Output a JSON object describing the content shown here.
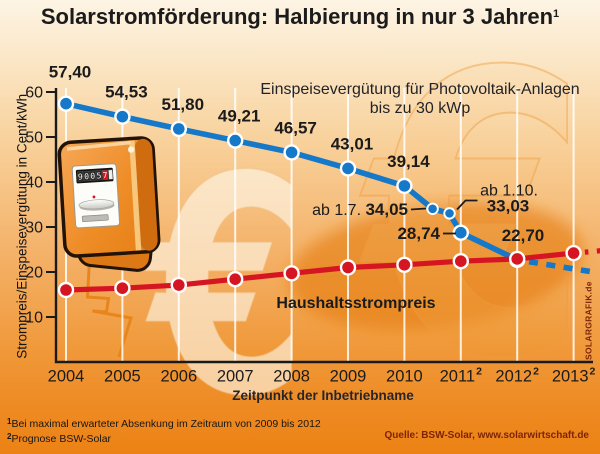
{
  "title": {
    "text": "Solarstromförderung: Halbierung in nur 3 Jahren",
    "sup": "1"
  },
  "annotations": {
    "blue_series_line1": "Einspeisevergütung für Photovoltaik-Anlagen",
    "blue_series_line2": "bis zu 30 kWp",
    "red_series": "Haushaltsstrompreis"
  },
  "y_axis": {
    "title": "Strompreis/Einspeisevergütung in Cent/kWh",
    "ticks": [
      "60",
      "50",
      "40",
      "30",
      "20",
      "10"
    ]
  },
  "x_axis": {
    "title": "Zeitpunkt der Inbetriebname",
    "ticks": [
      {
        "label": "2004",
        "sup": ""
      },
      {
        "label": "2005",
        "sup": ""
      },
      {
        "label": "2006",
        "sup": ""
      },
      {
        "label": "2007",
        "sup": ""
      },
      {
        "label": "2008",
        "sup": ""
      },
      {
        "label": "2009",
        "sup": ""
      },
      {
        "label": "2010",
        "sup": ""
      },
      {
        "label": "2011",
        "sup": "2"
      },
      {
        "label": "2012",
        "sup": "2"
      },
      {
        "label": "2013",
        "sup": "2"
      }
    ]
  },
  "footnotes": [
    {
      "sup": "1",
      "text": "Bei maximal erwarteter Absenkung im Zeitraum von 2009 bis 2012"
    },
    {
      "sup": "2",
      "text": "Prognose BSW-Solar"
    }
  ],
  "source": "Quelle: BSW-Solar, www.solarwirtschaft.de",
  "watermark": "SOLARGRAFIK.de",
  "meter": {
    "display_digits": [
      "9",
      "0",
      "0",
      "5",
      "7"
    ]
  },
  "colors": {
    "blue": "#1678c8",
    "red": "#d51622",
    "text": "#1b1b1b",
    "maroon": "#7c2506",
    "grid": "#ffffff",
    "axis": "#1a1a1a"
  },
  "chart_data": {
    "type": "line",
    "title": "Solarstromförderung: Halbierung in nur 3 Jahren",
    "xlabel": "Zeitpunkt der Inbetriebname",
    "ylabel": "Strompreis/Einspeisevergütung in Cent/kWh",
    "xlim": [
      2004,
      2013
    ],
    "ylim": [
      0,
      62
    ],
    "yticks": [
      60,
      50,
      40,
      30,
      20,
      10
    ],
    "xticks": [
      2004,
      2005,
      2006,
      2007,
      2008,
      2009,
      2010,
      2011,
      2012,
      2013
    ],
    "grid": "vertical-white-lines",
    "legend_position": "inline-annotations",
    "series": [
      {
        "name": "Einspeisevergütung für Photovoltaik-Anlagen bis zu 30 kWp",
        "color": "#1678c8",
        "points": [
          {
            "x": 2004,
            "y": 57.4,
            "label": "57,40"
          },
          {
            "x": 2005,
            "y": 54.53,
            "label": "54,53"
          },
          {
            "x": 2006,
            "y": 51.8,
            "label": "51,80"
          },
          {
            "x": 2007,
            "y": 49.21,
            "label": "49,21"
          },
          {
            "x": 2008,
            "y": 46.57,
            "label": "46,57"
          },
          {
            "x": 2009,
            "y": 43.01,
            "label": "43,01"
          },
          {
            "x": 2010,
            "y": 39.14,
            "label": "39,14"
          },
          {
            "x": 2010.5,
            "y": 34.05,
            "label": "34,05",
            "note": "ab 1.7.",
            "small": true
          },
          {
            "x": 2010.8,
            "y": 33.03,
            "label": "33,03",
            "note": "ab 1.10.",
            "small": true
          },
          {
            "x": 2011,
            "y": 28.74,
            "label": "28,74"
          },
          {
            "x": 2012,
            "y": 22.7,
            "label": "22,70"
          }
        ],
        "projection_dashed": {
          "x1": 2012,
          "y1": 22.7,
          "x2": 2013.4,
          "y2": 19.9
        }
      },
      {
        "name": "Haushaltsstrompreis",
        "color": "#d51622",
        "points": [
          {
            "x": 2004,
            "y": 16.0
          },
          {
            "x": 2005,
            "y": 16.4
          },
          {
            "x": 2006,
            "y": 17.1
          },
          {
            "x": 2007,
            "y": 18.4
          },
          {
            "x": 2008,
            "y": 19.7
          },
          {
            "x": 2009,
            "y": 21.0
          },
          {
            "x": 2010,
            "y": 21.6
          },
          {
            "x": 2011,
            "y": 22.4
          },
          {
            "x": 2012,
            "y": 22.9
          },
          {
            "x": 2013,
            "y": 24.2
          }
        ],
        "projection_dashed": {
          "x1": 2013.2,
          "y1": 24.4,
          "x2": 2013.8,
          "y2": 25.1
        }
      }
    ]
  }
}
